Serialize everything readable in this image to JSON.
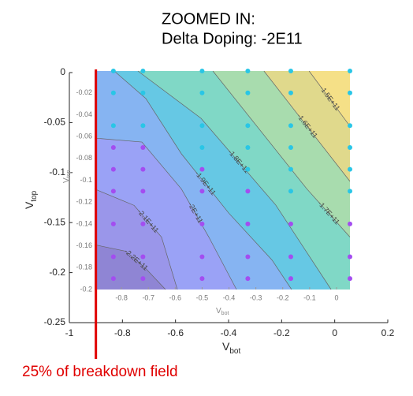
{
  "chart_data": [
    {
      "type": "axes",
      "title": [
        "ZOOMED IN:",
        "Delta Doping: -2E11"
      ],
      "xlabel": "V",
      "xlabel_sub": "bot",
      "ylabel": "V",
      "ylabel_sub": "top",
      "xlim": [
        -1,
        0.2
      ],
      "xticks": [
        -1,
        -0.8,
        -0.6,
        -0.4,
        -0.2,
        0,
        0.2
      ],
      "ylim": [
        -0.25,
        0
      ],
      "yticks": [
        0,
        -0.05,
        -0.1,
        -0.15,
        -0.2,
        -0.25
      ],
      "vline": {
        "x": -0.9,
        "color": "#e00000",
        "label": "25% of breakdown field"
      }
    },
    {
      "type": "contour",
      "xlabel": "V",
      "xlabel_sub": "bot",
      "ylabel": "V",
      "ylabel_sub": "top",
      "xlim": [
        -0.9,
        0.05
      ],
      "xticks": [
        -0.8,
        -0.7,
        -0.6,
        -0.5,
        -0.4,
        -0.3,
        -0.2,
        -0.1,
        0
      ],
      "ylim": [
        -0.2,
        0
      ],
      "yticks": [
        -0.02,
        -0.04,
        -0.06,
        -0.08,
        -0.1,
        -0.12,
        -0.14,
        -0.16,
        -0.18,
        -0.2
      ],
      "background_color": "#f5e087",
      "contours": [
        {
          "label": "-1.5E+11",
          "color": "#e0d98c",
          "x": [
            -0.102,
            0.05
          ],
          "y": [
            0,
            -0.0505
          ]
        },
        {
          "label": "-1.6E+11",
          "color": "#a8dcae",
          "x": [
            -0.27,
            0.05
          ],
          "y": [
            0,
            -0.101
          ]
        },
        {
          "label": "-1.7E+11",
          "color": "#80d8c6",
          "x": [
            -0.46,
            -0.11,
            0.05
          ],
          "y": [
            0,
            -0.108,
            -0.152
          ]
        },
        {
          "label": "-1.8E+11",
          "color": "#66c8e4",
          "x": [
            -0.739,
            -0.504,
            -0.226,
            -0.02
          ],
          "y": [
            0,
            -0.0433,
            -0.1227,
            -0.2
          ]
        },
        {
          "label": "-1.9E+11",
          "color": "#86b4f2",
          "x": [
            -0.827,
            -0.709,
            -0.577,
            -0.401,
            -0.24,
            -0.167
          ],
          "y": [
            0,
            -0.0253,
            -0.0758,
            -0.13,
            -0.173,
            -0.2
          ]
        },
        {
          "label": "-2E+11",
          "color": "#9aa2f6",
          "x": [
            -0.9,
            -0.724,
            -0.577,
            -0.475,
            -0.372
          ],
          "y": [
            -0.0614,
            -0.065,
            -0.108,
            -0.152,
            -0.2
          ]
        },
        {
          "label": "-2.1E+11",
          "color": "#9a96ea",
          "x": [
            -0.9,
            -0.753,
            -0.651,
            -0.592
          ],
          "y": [
            -0.108,
            -0.123,
            -0.152,
            -0.2
          ]
        },
        {
          "label": "-2.2E+11",
          "color": "#8f85d4",
          "x": [
            -0.9,
            -0.783,
            -0.709,
            -0.636
          ],
          "y": [
            -0.159,
            -0.165,
            -0.181,
            -0.2
          ]
        }
      ],
      "series": [
        {
          "color": "#29c6e6",
          "x": [
            -0.83,
            -0.83,
            -0.83,
            -0.72,
            -0.72,
            -0.72,
            -0.5,
            -0.5,
            -0.5,
            -0.5,
            -0.33,
            -0.33,
            -0.33,
            -0.33,
            -0.33,
            -0.17,
            -0.17,
            -0.17,
            -0.17,
            -0.17,
            -0.17,
            0.05,
            0.05,
            0.05,
            0.05,
            0.05,
            0.05
          ],
          "y": [
            0,
            -0.02,
            -0.05,
            0,
            -0.02,
            -0.05,
            0,
            -0.02,
            -0.05,
            -0.07,
            0,
            -0.02,
            -0.05,
            -0.07,
            -0.09,
            0,
            -0.02,
            -0.05,
            -0.07,
            -0.09,
            -0.11,
            0,
            -0.02,
            -0.05,
            -0.07,
            -0.09,
            -0.11
          ]
        },
        {
          "color": "#a34df0",
          "x": [
            -0.83,
            -0.83,
            -0.83,
            -0.83,
            -0.83,
            -0.83,
            -0.72,
            -0.72,
            -0.72,
            -0.72,
            -0.72,
            -0.72,
            -0.5,
            -0.5,
            -0.5,
            -0.5,
            -0.5,
            -0.33,
            -0.33,
            -0.33,
            -0.33,
            -0.17,
            -0.17,
            -0.17,
            0.05,
            0.05,
            0.05
          ],
          "y": [
            -0.07,
            -0.09,
            -0.11,
            -0.14,
            -0.17,
            -0.19,
            -0.07,
            -0.09,
            -0.11,
            -0.14,
            -0.17,
            -0.19,
            -0.09,
            -0.11,
            -0.14,
            -0.17,
            -0.19,
            -0.11,
            -0.14,
            -0.17,
            -0.19,
            -0.14,
            -0.17,
            -0.19,
            -0.14,
            -0.17,
            -0.19
          ]
        }
      ]
    }
  ]
}
